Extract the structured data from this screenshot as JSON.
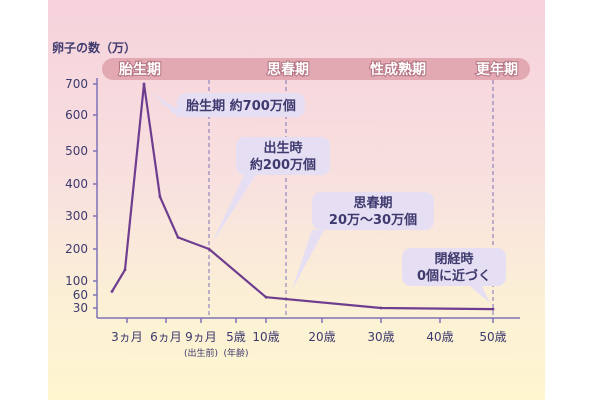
{
  "chart_data": {
    "type": "line",
    "title": "",
    "ylabel": "卵子の数（万）",
    "xlabel": "",
    "ylim": [
      30,
      700
    ],
    "y_ticks": [
      "700",
      "600",
      "500",
      "400",
      "300",
      "200",
      "100",
      "60",
      "30"
    ],
    "x_ticks": [
      {
        "label": "3ヵ月",
        "sub": ""
      },
      {
        "label": "6ヵ月",
        "sub": ""
      },
      {
        "label": "9ヵ月",
        "sub": "(出生前)"
      },
      {
        "label": "5歳",
        "sub": "(年齢)"
      },
      {
        "label": "10歳",
        "sub": ""
      },
      {
        "label": "20歳",
        "sub": ""
      },
      {
        "label": "30歳",
        "sub": ""
      },
      {
        "label": "40歳",
        "sub": ""
      },
      {
        "label": "50歳",
        "sub": ""
      }
    ],
    "series": [
      {
        "color": "#6e3d8f",
        "points": [
          {
            "x": "2ヵ月",
            "y": 70
          },
          {
            "x": "3ヵ月",
            "y": 135
          },
          {
            "x": "5ヵ月",
            "y": 700
          },
          {
            "x": "6ヵ月",
            "y": 360
          },
          {
            "x": "8ヵ月",
            "y": 235
          },
          {
            "x": "出生時",
            "y": 200
          },
          {
            "x": "10歳",
            "y": 55
          },
          {
            "x": "30歳",
            "y": 30
          },
          {
            "x": "50歳",
            "y": 27
          }
        ]
      }
    ],
    "phases": [
      "胎生期",
      "思春期",
      "性成熟期",
      "更年期"
    ],
    "annotations": [
      {
        "lines": [
          "胎生期 約700万個"
        ]
      },
      {
        "lines": [
          "出生時",
          "約200万個"
        ]
      },
      {
        "lines": [
          "思春期",
          "20万〜30万個"
        ]
      },
      {
        "lines": [
          "閉経時",
          "0個に近づく"
        ]
      }
    ],
    "colors": {
      "line": "#6e3d8f",
      "phase_band": "#e3a9b3",
      "axis": "#7e72b8",
      "bubble": "#e6dff4",
      "bubble_text": "#3e3a6e"
    }
  }
}
